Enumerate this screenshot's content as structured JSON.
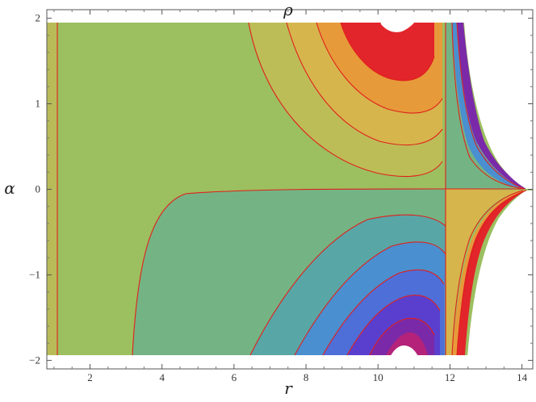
{
  "chart_data": {
    "type": "heatmap",
    "title": "ρ",
    "xlabel": "r",
    "ylabel": "α",
    "xlim": [
      0.8,
      14.3
    ],
    "ylim": [
      -2.1,
      2.1
    ],
    "x_ticks": [
      "2",
      "4",
      "6",
      "8",
      "10",
      "12",
      "14"
    ],
    "y_ticks": [
      "2",
      "1",
      "0",
      "−1",
      "−2"
    ],
    "grid": false,
    "legend": "none",
    "contour_line_color": "#e0201c",
    "regions": [
      {
        "band": "top-1",
        "color": "#e2252a",
        "description": "highest ρ near r≈10.5, α≈2"
      },
      {
        "band": "top-2",
        "color": "#e79a3a"
      },
      {
        "band": "top-3",
        "color": "#d6b54c"
      },
      {
        "band": "top-4",
        "color": "#bdbd57"
      },
      {
        "band": "mid-upper",
        "color": "#9cbf5f"
      },
      {
        "band": "mid-lower",
        "color": "#74b484"
      },
      {
        "band": "bottom-1",
        "color": "#59a6a6"
      },
      {
        "band": "bottom-2",
        "color": "#4a8fcf"
      },
      {
        "band": "bottom-3",
        "color": "#4e6ed8"
      },
      {
        "band": "bottom-4",
        "color": "#5a3fcf"
      },
      {
        "band": "bottom-5",
        "color": "#7a2aa8"
      },
      {
        "band": "bottom-6",
        "color": "#b4227a"
      }
    ]
  }
}
